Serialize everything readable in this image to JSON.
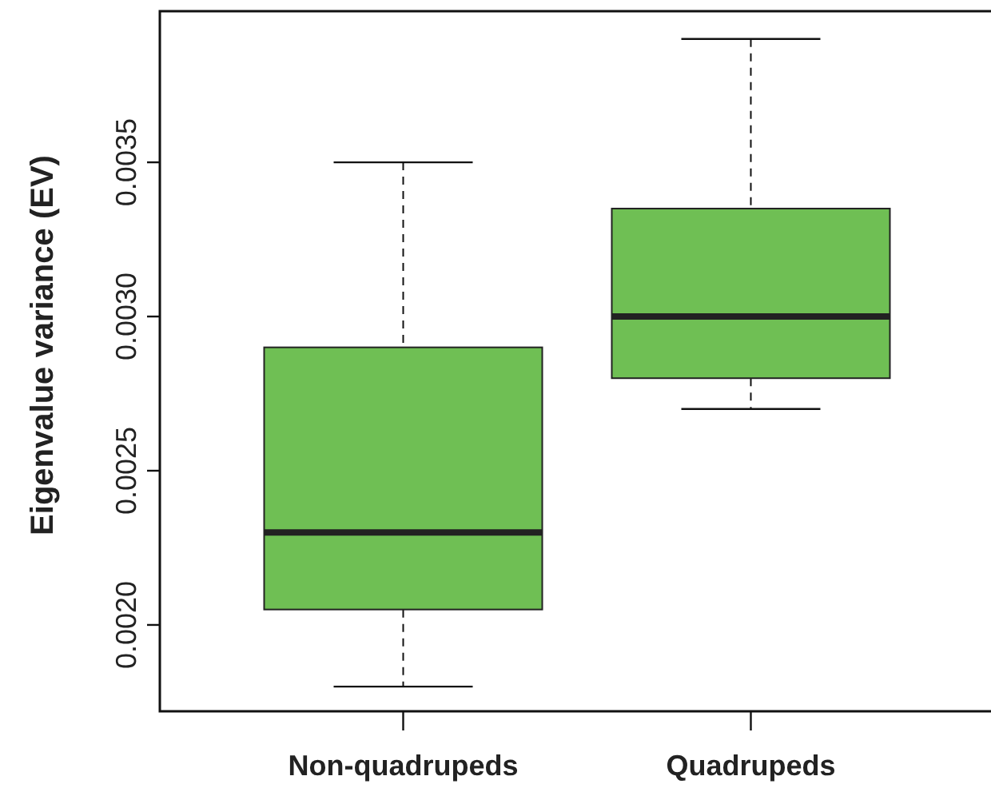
{
  "chart_data": {
    "type": "box",
    "ylabel": "Eigenvalue variance (EV)",
    "categories": [
      "Non-quadrupeds",
      "Quadrupeds"
    ],
    "boxes": [
      {
        "low": 0.0018,
        "q1": 0.00205,
        "median": 0.0023,
        "q3": 0.0029,
        "high": 0.0035
      },
      {
        "low": 0.0027,
        "q1": 0.0028,
        "median": 0.003,
        "q3": 0.00335,
        "high": 0.0039
      }
    ],
    "color": "#6fbf54",
    "ylim": [
      0.00172,
      0.00399
    ],
    "yticks": [
      {
        "value": 0.002,
        "label": "0.0020"
      },
      {
        "value": 0.0025,
        "label": "0.0025"
      },
      {
        "value": 0.003,
        "label": "0.0030"
      },
      {
        "value": 0.0035,
        "label": "0.0035"
      }
    ]
  }
}
